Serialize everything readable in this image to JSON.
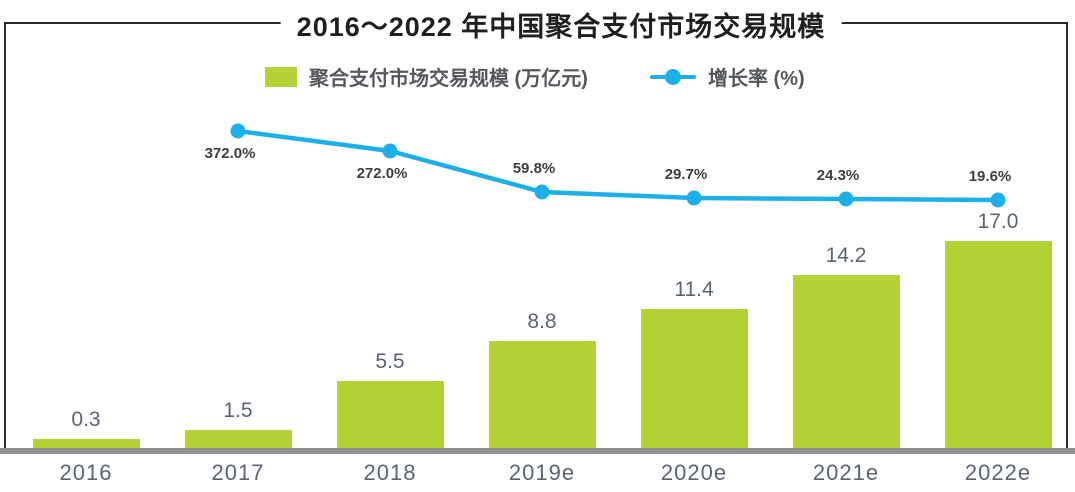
{
  "title": "2016～2022 年中国聚合支付市场交易规模",
  "legend": {
    "bar_label": "聚合支付市场交易规模 (万亿元)",
    "line_label": "增长率 (%)"
  },
  "colors": {
    "background": "#ffffff",
    "bar": "#b2d235",
    "line": "#1db0e8",
    "axis": "#8f8f8f",
    "frame": "#2b2b2b",
    "title_text": "#1f1f1f",
    "value_label": "#5b6470",
    "x_label": "#5b6470",
    "growth_label": "#3e3e3e",
    "legend_text": "#54585d"
  },
  "chart_data": {
    "type": "combo-bar-line",
    "title": "2016～2022 年中国聚合支付市场交易规模",
    "categories": [
      "2016",
      "2017",
      "2018",
      "2019e",
      "2020e",
      "2021e",
      "2022e"
    ],
    "series": [
      {
        "name": "聚合支付市场交易规模 (万亿元)",
        "type": "bar",
        "unit": "万亿元",
        "color": "#b2d235",
        "values": [
          0.3,
          1.5,
          5.5,
          8.8,
          11.4,
          14.2,
          17.0
        ],
        "value_labels": [
          "0.3",
          "1.5",
          "5.5",
          "8.8",
          "11.4",
          "14.2",
          "17.0"
        ]
      },
      {
        "name": "增长率 (%)",
        "type": "line",
        "unit": "%",
        "color": "#1db0e8",
        "values": [
          null,
          372.0,
          272.0,
          59.8,
          29.7,
          24.3,
          19.6
        ],
        "value_labels": [
          null,
          "372.0%",
          "272.0%",
          "59.8%",
          "29.7%",
          "24.3%",
          "19.6%"
        ]
      }
    ],
    "grid": "off",
    "legend_position": "top",
    "x_axis": {
      "line": true,
      "tick_labels_shown": true
    },
    "y_axis": {
      "shown": false
    }
  }
}
